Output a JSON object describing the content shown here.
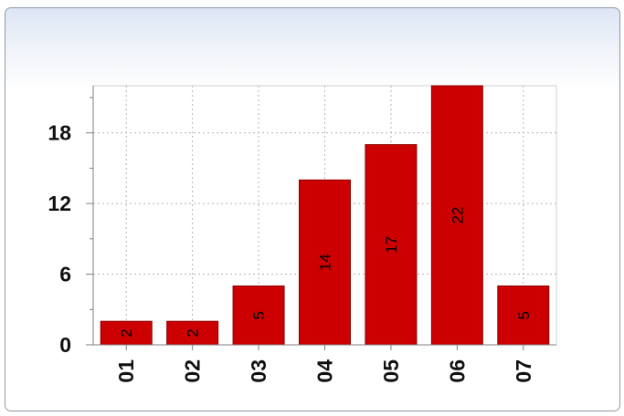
{
  "chart_data": {
    "type": "bar",
    "categories": [
      "01",
      "02",
      "03",
      "04",
      "05",
      "06",
      "07"
    ],
    "values": [
      2,
      2,
      5,
      14,
      17,
      22,
      5
    ],
    "data_labels": [
      "2",
      "2",
      "5",
      "14",
      "17",
      "22",
      "5"
    ],
    "yticks": [
      0,
      6,
      12,
      18
    ],
    "ytick_labels": [
      "0",
      "6",
      "12",
      "18"
    ],
    "ylim": [
      0,
      22
    ],
    "title": "",
    "xlabel": "",
    "ylabel": "",
    "grid": true,
    "bar_color": "#cc0000",
    "grid_color": "#b5b5b5",
    "axis_color": "#7f7f7f"
  }
}
